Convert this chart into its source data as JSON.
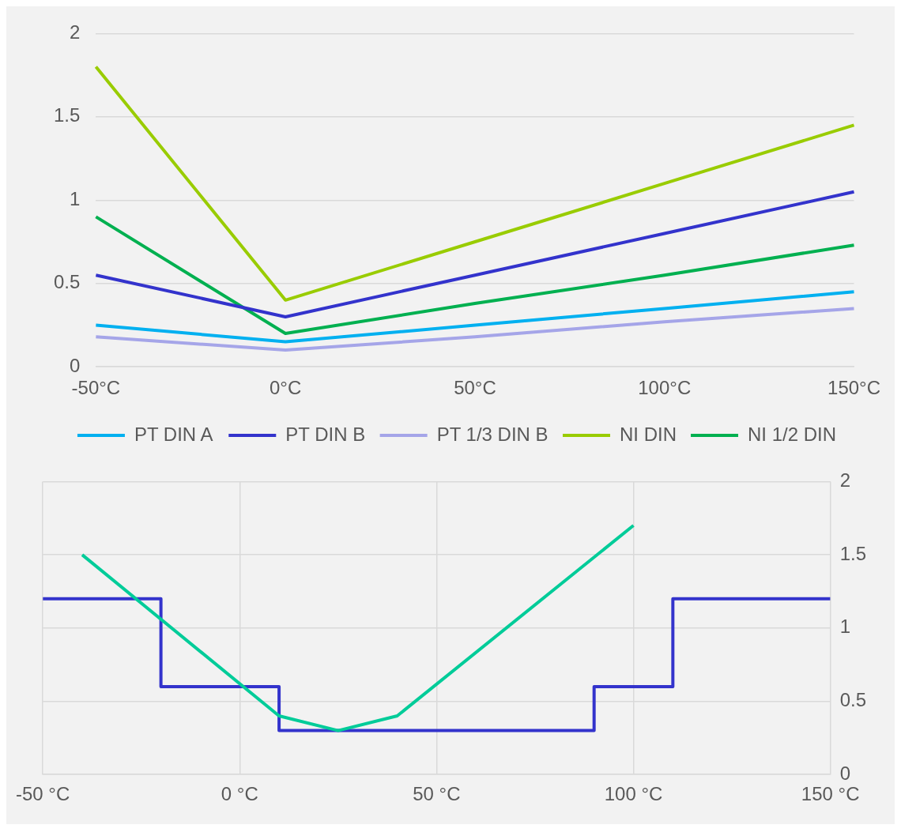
{
  "chart_data": [
    {
      "type": "line",
      "categories": [
        "-50°C",
        "0°C",
        "50°C",
        "100°C",
        "150°C"
      ],
      "series": [
        {
          "name": "PT DIN A",
          "color": "#00b0f0",
          "values": [
            0.25,
            0.15,
            0.25,
            0.35,
            0.45
          ]
        },
        {
          "name": "PT DIN B",
          "color": "#3333cc",
          "values": [
            0.55,
            0.3,
            0.55,
            0.8,
            1.05
          ]
        },
        {
          "name": "PT 1/3 DIN B",
          "color": "#a5a5e8",
          "values": [
            0.18,
            0.1,
            0.18,
            0.27,
            0.35
          ]
        },
        {
          "name": "NI DIN",
          "color": "#99cc00",
          "values": [
            1.8,
            0.4,
            0.75,
            1.1,
            1.45
          ]
        },
        {
          "name": "NI 1/2 DIN",
          "color": "#00b050",
          "values": [
            0.9,
            0.2,
            0.38,
            0.55,
            0.73
          ]
        }
      ],
      "ylim": [
        0,
        2
      ],
      "yticks": [
        0,
        0.5,
        1,
        1.5,
        2
      ],
      "grid": "y",
      "legend": "bottom"
    },
    {
      "type": "line",
      "xlim": [
        -50,
        150
      ],
      "xticks": [
        {
          "value": -50,
          "label": "-50 °C"
        },
        {
          "value": 0,
          "label": "0 °C"
        },
        {
          "value": 50,
          "label": "50 °C"
        },
        {
          "value": 100,
          "label": "100 °C"
        },
        {
          "value": 150,
          "label": "150 °C"
        }
      ],
      "series": [
        {
          "color": "#00cc99",
          "axis": "y2",
          "x": [
            -40,
            10,
            25,
            40,
            100
          ],
          "values": [
            1.5,
            0.4,
            0.3,
            0.4,
            1.7
          ]
        },
        {
          "type": "step",
          "color": "#3333cc",
          "axis": "y2",
          "x": [
            -50,
            -20,
            10,
            90,
            110,
            150
          ],
          "values": [
            1.2,
            0.6,
            0.3,
            0.6,
            1.2,
            1.2
          ]
        }
      ],
      "y2lim": [
        0,
        2
      ],
      "y2ticks": [
        0,
        0.5,
        1,
        1.5,
        2
      ],
      "grid": true
    }
  ]
}
